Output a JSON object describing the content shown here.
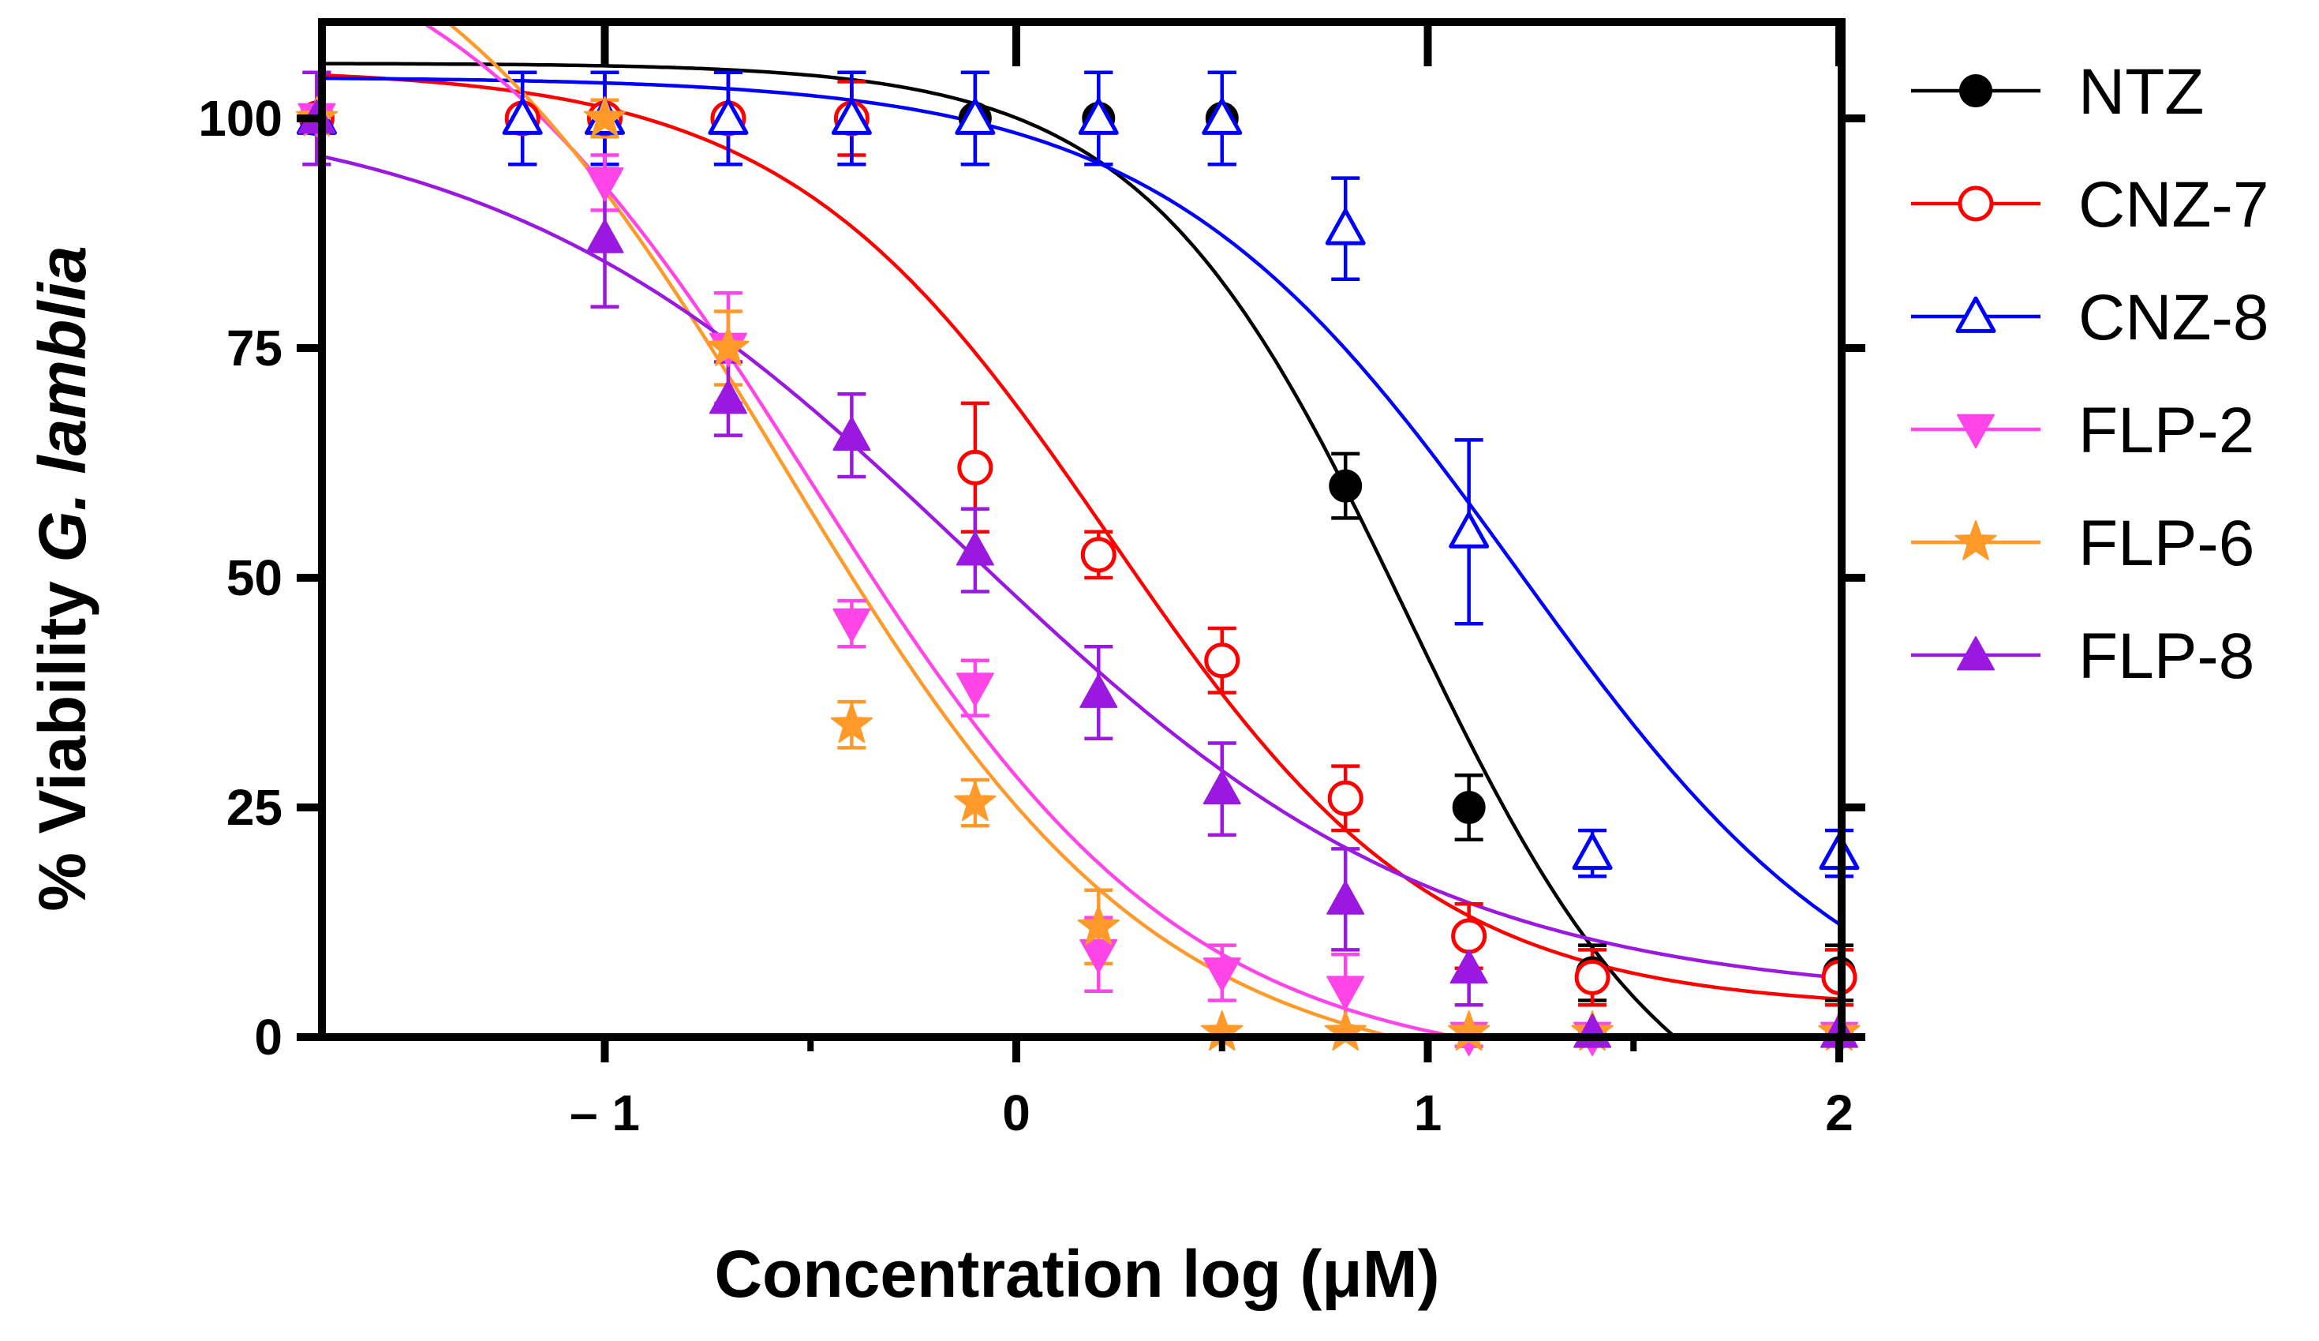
{
  "chart_data": {
    "type": "scatter",
    "title": "",
    "xlabel": "Concentration log (μM)",
    "ylabel_parts": [
      "% Viability ",
      "G. lamblia"
    ],
    "xlim": [
      -1.7,
      2.0
    ],
    "ylim": [
      0,
      110
    ],
    "x_ticks": [
      -1,
      0,
      1,
      2
    ],
    "x_tick_labels": [
      "– 1",
      "0",
      "1",
      "2"
    ],
    "x_minor_ticks": [
      -0.5,
      0.5,
      1.5
    ],
    "y_ticks": [
      0,
      25,
      50,
      75,
      100
    ],
    "y_tick_labels": [
      "0",
      "25",
      "50",
      "75",
      "100"
    ],
    "grid": false,
    "legend_position": "right",
    "series": [
      {
        "name": "NTZ",
        "color": "#000000",
        "marker": "circle",
        "filled": true,
        "x": [
          -1.7,
          -1.2,
          -1.0,
          -0.7,
          -0.4,
          -0.1,
          0.2,
          0.5,
          0.8,
          1.1,
          1.4,
          2.0
        ],
        "y": [
          100,
          100,
          100,
          100,
          100,
          100,
          100,
          100,
          60,
          25,
          7,
          7
        ],
        "err": [
          5,
          5,
          5,
          5,
          5,
          5,
          5,
          5,
          3.5,
          3.5,
          3,
          3
        ],
        "fit": {
          "top": 106,
          "bottom": -14,
          "logEC50": 0.95,
          "hill": -1.35
        }
      },
      {
        "name": "CNZ-7",
        "color": "#ff0000",
        "marker": "circle",
        "filled": false,
        "x": [
          -1.7,
          -1.2,
          -1.0,
          -0.7,
          -0.4,
          -0.1,
          0.2,
          0.5,
          0.8,
          1.1,
          1.4,
          2.0
        ],
        "y": [
          100,
          100,
          100,
          100,
          100,
          62,
          52.5,
          41,
          26,
          11,
          6.5,
          6.5
        ],
        "err": [
          5,
          5,
          5,
          5,
          4,
          7,
          2.5,
          3.5,
          3.5,
          3.5,
          3,
          3
        ],
        "fit": {
          "top": 105.5,
          "bottom": 3,
          "logEC50": 0.23,
          "hill": -1.1
        }
      },
      {
        "name": "CNZ-8",
        "color": "#0000ff",
        "marker": "triangle-up",
        "filled": false,
        "x": [
          -1.7,
          -1.2,
          -1.0,
          -0.7,
          -0.4,
          -0.1,
          0.2,
          0.5,
          0.8,
          1.1,
          1.4,
          2.0
        ],
        "y": [
          100,
          100,
          100,
          100,
          100,
          100,
          100,
          100,
          88,
          55,
          20,
          20
        ],
        "err": [
          5,
          5,
          5,
          5,
          5,
          5,
          5,
          5,
          5.5,
          10,
          2.5,
          2.5
        ],
        "fit": {
          "top": 104.5,
          "bottom": -3,
          "logEC50": 1.22,
          "hill": -1.0
        }
      },
      {
        "name": "FLP-2",
        "color": "#ff44e8",
        "marker": "triangle-down",
        "filled": true,
        "x": [
          -1.7,
          -1.0,
          -0.7,
          -0.4,
          -0.1,
          0.2,
          0.5,
          0.8,
          1.1,
          1.4,
          2.0
        ],
        "y": [
          100,
          93,
          75,
          45,
          38,
          9,
          7,
          5,
          0,
          0,
          0
        ],
        "err": [
          5,
          3,
          6,
          2.5,
          3,
          4,
          3,
          4,
          1,
          0.5,
          0.5
        ],
        "fit": {
          "top": 125,
          "bottom": -4,
          "logEC50": -0.5,
          "hill": -0.95
        }
      },
      {
        "name": "FLP-6",
        "color": "#ff9a2a",
        "marker": "star",
        "filled": true,
        "x": [
          -1.7,
          -1.0,
          -0.7,
          -0.4,
          -0.1,
          0.2,
          0.5,
          0.8,
          1.1,
          1.4,
          2.0
        ],
        "y": [
          100,
          100,
          75,
          34,
          25.5,
          12,
          0.5,
          0.5,
          0.5,
          0.5,
          0.5
        ],
        "err": [
          5,
          2,
          4,
          2.5,
          2.5,
          4,
          0.5,
          0.5,
          0.5,
          0.5,
          0.5
        ],
        "fit": {
          "top": 130,
          "bottom": -5,
          "logEC50": -0.57,
          "hill": -0.95
        }
      },
      {
        "name": "FLP-8",
        "color": "#9a18e0",
        "marker": "triangle-up",
        "filled": true,
        "x": [
          -1.7,
          -1.0,
          -0.7,
          -0.4,
          -0.1,
          0.2,
          0.5,
          0.8,
          1.1,
          1.4,
          2.0
        ],
        "y": [
          100,
          87,
          69.5,
          65.5,
          53,
          37.5,
          27,
          15,
          7.5,
          0.5,
          0.5
        ],
        "err": [
          5,
          7.5,
          4,
          4.5,
          4.5,
          5,
          5,
          5.5,
          4,
          0.5,
          0.5
        ],
        "fit": {
          "top": 102,
          "bottom": 4,
          "logEC50": -0.12,
          "hill": -0.75
        }
      }
    ]
  }
}
